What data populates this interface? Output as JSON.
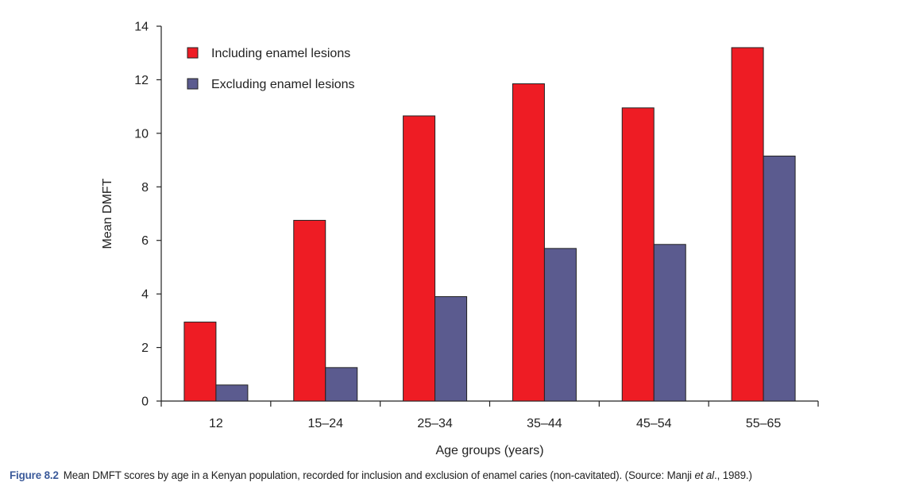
{
  "chart_data": {
    "type": "bar",
    "categories": [
      "12",
      "15–24",
      "25–34",
      "35–44",
      "45–54",
      "55–65"
    ],
    "series": [
      {
        "name": "Including enamel lesions",
        "values": [
          2.95,
          6.75,
          10.65,
          11.85,
          10.95,
          13.2
        ],
        "color": "#ee1c24"
      },
      {
        "name": "Excluding enamel lesions",
        "values": [
          0.6,
          1.25,
          3.9,
          5.7,
          5.85,
          9.15
        ],
        "color": "#5b5b8f"
      }
    ],
    "xlabel": "Age groups (years)",
    "ylabel": "Mean DMFT",
    "ylim": [
      0,
      14
    ],
    "yticks": [
      "0",
      "2",
      "4",
      "6",
      "8",
      "10",
      "12",
      "14"
    ],
    "grid": false,
    "legend_position": "top-left"
  },
  "caption": {
    "label": "Figure 8.2",
    "text_before_italic": "Mean DMFT scores by age in a Kenyan population, recorded for inclusion and exclusion of enamel caries (non-cavitated). (Source: Manji ",
    "italic": "et al",
    "text_after_italic": "., 1989.)"
  }
}
